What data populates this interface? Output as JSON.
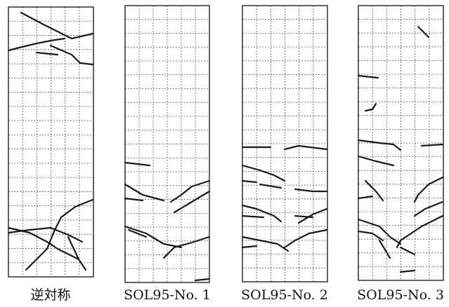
{
  "panels": [
    {
      "label": "逆対称"
    },
    {
      "label": "SOL95-No. 1"
    },
    {
      "label": "SOL95-No. 2"
    },
    {
      "label": "SOL95-No. 3"
    }
  ]
}
